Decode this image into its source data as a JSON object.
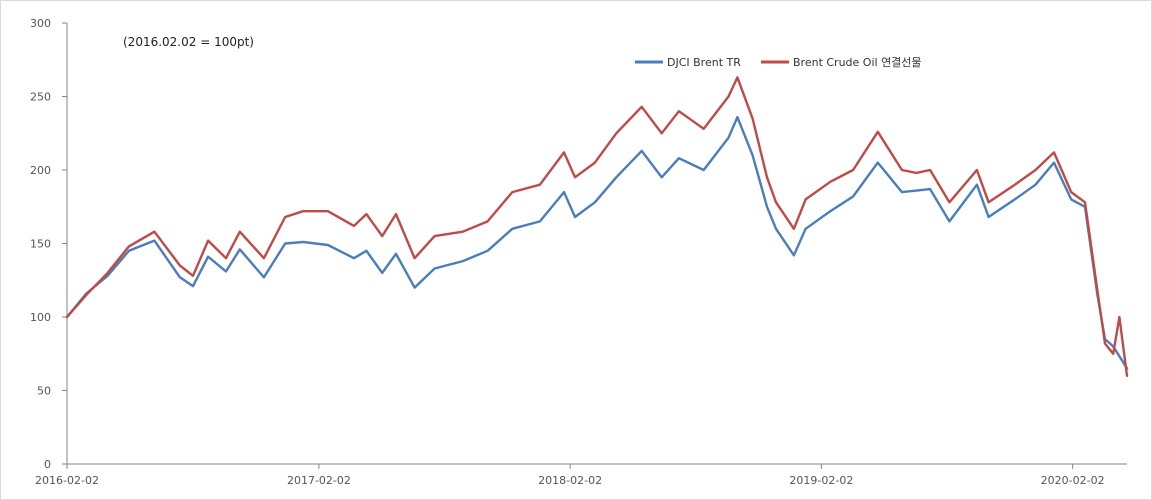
{
  "chart_data": {
    "type": "line",
    "note": "(2016.02.02  = 100pt)",
    "ylim": [
      0,
      300
    ],
    "y_ticks": [
      0,
      50,
      100,
      150,
      200,
      250,
      300
    ],
    "x_tick_labels": [
      "2016-02-02",
      "2017-02-02",
      "2018-02-02",
      "2019-02-02",
      "2020-02-02"
    ],
    "grid": false,
    "legend_position": "top-right",
    "colors": {
      "blue": "#4a7ebb",
      "red": "#be4b48"
    },
    "series": [
      {
        "name": "DJCI Brent TR",
        "color": "#4a7ebb",
        "points": [
          [
            "2016-02-02",
            100
          ],
          [
            "2016-03-01",
            116
          ],
          [
            "2016-04-01",
            128
          ],
          [
            "2016-05-02",
            145
          ],
          [
            "2016-06-08",
            152
          ],
          [
            "2016-07-15",
            127
          ],
          [
            "2016-08-03",
            121
          ],
          [
            "2016-08-25",
            141
          ],
          [
            "2016-09-20",
            131
          ],
          [
            "2016-10-10",
            146
          ],
          [
            "2016-11-14",
            127
          ],
          [
            "2016-12-15",
            150
          ],
          [
            "2017-01-10",
            151
          ],
          [
            "2017-02-15",
            149
          ],
          [
            "2017-03-25",
            140
          ],
          [
            "2017-04-12",
            145
          ],
          [
            "2017-05-05",
            130
          ],
          [
            "2017-05-25",
            143
          ],
          [
            "2017-06-21",
            120
          ],
          [
            "2017-07-20",
            133
          ],
          [
            "2017-08-30",
            138
          ],
          [
            "2017-10-05",
            145
          ],
          [
            "2017-11-10",
            160
          ],
          [
            "2017-12-20",
            165
          ],
          [
            "2018-01-24",
            185
          ],
          [
            "2018-02-09",
            168
          ],
          [
            "2018-03-10",
            178
          ],
          [
            "2018-04-10",
            195
          ],
          [
            "2018-05-17",
            213
          ],
          [
            "2018-06-15",
            195
          ],
          [
            "2018-07-10",
            208
          ],
          [
            "2018-08-15",
            200
          ],
          [
            "2018-09-20",
            222
          ],
          [
            "2018-10-03",
            236
          ],
          [
            "2018-10-25",
            210
          ],
          [
            "2018-11-15",
            175
          ],
          [
            "2018-11-28",
            160
          ],
          [
            "2018-12-24",
            142
          ],
          [
            "2019-01-10",
            160
          ],
          [
            "2019-02-15",
            172
          ],
          [
            "2019-03-20",
            182
          ],
          [
            "2019-04-25",
            205
          ],
          [
            "2019-05-30",
            185
          ],
          [
            "2019-06-20",
            186
          ],
          [
            "2019-07-10",
            187
          ],
          [
            "2019-08-07",
            165
          ],
          [
            "2019-09-16",
            190
          ],
          [
            "2019-10-03",
            168
          ],
          [
            "2019-11-10",
            180
          ],
          [
            "2019-12-10",
            190
          ],
          [
            "2020-01-06",
            205
          ],
          [
            "2020-01-31",
            180
          ],
          [
            "2020-02-20",
            175
          ],
          [
            "2020-03-09",
            115
          ],
          [
            "2020-03-20",
            85
          ],
          [
            "2020-04-01",
            80
          ],
          [
            "2020-04-21",
            65
          ]
        ]
      },
      {
        "name": "Brent Crude Oil 연결선물",
        "color": "#be4b48",
        "points": [
          [
            "2016-02-02",
            100
          ],
          [
            "2016-03-01",
            115
          ],
          [
            "2016-04-01",
            130
          ],
          [
            "2016-05-02",
            148
          ],
          [
            "2016-06-08",
            158
          ],
          [
            "2016-07-15",
            135
          ],
          [
            "2016-08-03",
            128
          ],
          [
            "2016-08-25",
            152
          ],
          [
            "2016-09-20",
            140
          ],
          [
            "2016-10-10",
            158
          ],
          [
            "2016-11-14",
            140
          ],
          [
            "2016-12-15",
            168
          ],
          [
            "2017-01-10",
            172
          ],
          [
            "2017-02-15",
            172
          ],
          [
            "2017-03-25",
            162
          ],
          [
            "2017-04-12",
            170
          ],
          [
            "2017-05-05",
            155
          ],
          [
            "2017-05-25",
            170
          ],
          [
            "2017-06-21",
            140
          ],
          [
            "2017-07-20",
            155
          ],
          [
            "2017-08-30",
            158
          ],
          [
            "2017-10-05",
            165
          ],
          [
            "2017-11-10",
            185
          ],
          [
            "2017-12-20",
            190
          ],
          [
            "2018-01-24",
            212
          ],
          [
            "2018-02-09",
            195
          ],
          [
            "2018-03-10",
            205
          ],
          [
            "2018-04-10",
            225
          ],
          [
            "2018-05-17",
            243
          ],
          [
            "2018-06-15",
            225
          ],
          [
            "2018-07-10",
            240
          ],
          [
            "2018-08-15",
            228
          ],
          [
            "2018-09-20",
            250
          ],
          [
            "2018-10-03",
            263
          ],
          [
            "2018-10-25",
            235
          ],
          [
            "2018-11-15",
            195
          ],
          [
            "2018-11-28",
            178
          ],
          [
            "2018-12-24",
            160
          ],
          [
            "2019-01-10",
            180
          ],
          [
            "2019-02-15",
            192
          ],
          [
            "2019-03-20",
            200
          ],
          [
            "2019-04-25",
            226
          ],
          [
            "2019-05-30",
            200
          ],
          [
            "2019-06-20",
            198
          ],
          [
            "2019-07-10",
            200
          ],
          [
            "2019-08-07",
            178
          ],
          [
            "2019-09-16",
            200
          ],
          [
            "2019-10-03",
            178
          ],
          [
            "2019-11-10",
            190
          ],
          [
            "2019-12-10",
            200
          ],
          [
            "2020-01-06",
            212
          ],
          [
            "2020-01-31",
            185
          ],
          [
            "2020-02-20",
            178
          ],
          [
            "2020-03-09",
            118
          ],
          [
            "2020-03-20",
            82
          ],
          [
            "2020-04-01",
            75
          ],
          [
            "2020-04-10",
            100
          ],
          [
            "2020-04-21",
            60
          ]
        ]
      }
    ]
  }
}
